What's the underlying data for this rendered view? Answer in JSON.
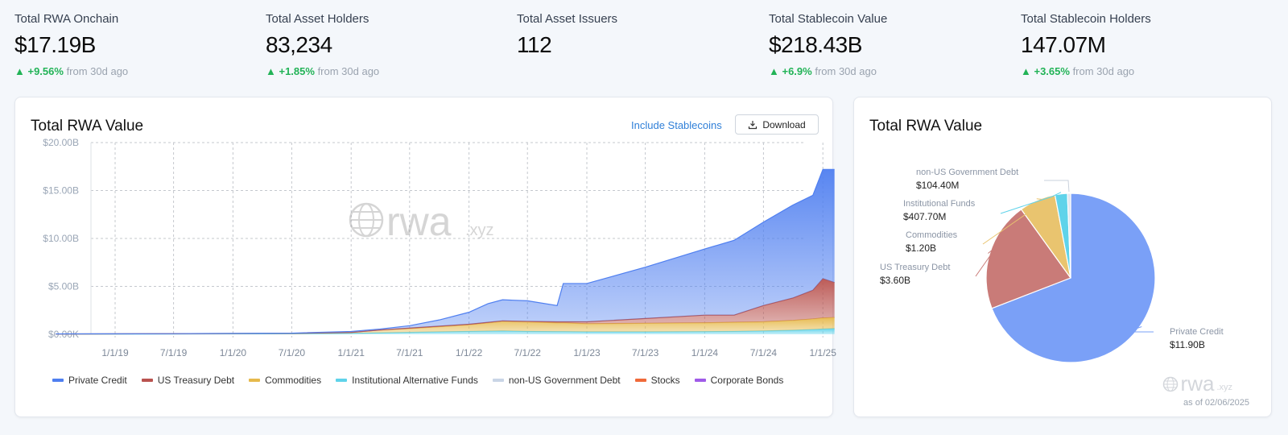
{
  "stats": [
    {
      "label": "Total RWA Onchain",
      "value": "$17.19B",
      "change": "+9.56%",
      "suffix": "from 30d ago"
    },
    {
      "label": "Total Asset Holders",
      "value": "83,234",
      "change": "+1.85%",
      "suffix": "from 30d ago"
    },
    {
      "label": "Total Asset Issuers",
      "value": "112"
    },
    {
      "label": "Total Stablecoin Value",
      "value": "$218.43B",
      "change": "+6.9%",
      "suffix": "from 30d ago"
    },
    {
      "label": "Total Stablecoin Holders",
      "value": "147.07M",
      "change": "+3.65%",
      "suffix": "from 30d ago"
    }
  ],
  "area_card": {
    "title": "Total RWA Value",
    "include_stablecoins": "Include Stablecoins",
    "download": "Download",
    "watermark": "rwa.xyz"
  },
  "pie_card": {
    "title": "Total RWA Value",
    "watermark": "rwa.xyz",
    "as_of": "as of 02/06/2025"
  },
  "chart_data": [
    {
      "type": "area",
      "stacked": true,
      "title": "Total RWA Value",
      "ylim": [
        0,
        20
      ],
      "yunit": "$B",
      "yticks": [
        "$0.00K",
        "$5.00B",
        "$10.00B",
        "$15.00B",
        "$20.00B"
      ],
      "xticks": [
        "1/1/19",
        "7/1/19",
        "1/1/20",
        "7/1/20",
        "1/1/21",
        "7/1/21",
        "1/1/22",
        "7/1/22",
        "1/1/23",
        "7/1/23",
        "1/1/24",
        "7/1/24",
        "1/1/25"
      ],
      "grid": true,
      "legend_placement": "bottom",
      "x": [
        "2018-07-01",
        "2019-07-01",
        "2020-07-01",
        "2021-01-01",
        "2021-04-01",
        "2021-07-01",
        "2021-10-01",
        "2022-01-01",
        "2022-03-01",
        "2022-04-15",
        "2022-07-01",
        "2022-10-01",
        "2022-10-20",
        "2023-01-01",
        "2023-07-01",
        "2024-01-01",
        "2024-04-01",
        "2024-07-01",
        "2024-10-01",
        "2024-12-01",
        "2025-01-01",
        "2025-02-06"
      ],
      "series": [
        {
          "name": "Institutional Alternative Funds",
          "color": "#5fd3ea",
          "values": [
            0.02,
            0.03,
            0.05,
            0.1,
            0.15,
            0.2,
            0.25,
            0.3,
            0.33,
            0.35,
            0.3,
            0.28,
            0.28,
            0.25,
            0.25,
            0.28,
            0.3,
            0.35,
            0.42,
            0.5,
            0.55,
            0.6
          ]
        },
        {
          "name": "Commodities",
          "color": "#e6b94c",
          "values": [
            0.01,
            0.03,
            0.05,
            0.1,
            0.3,
            0.4,
            0.55,
            0.7,
            0.87,
            1.0,
            1.0,
            0.92,
            0.92,
            0.85,
            0.9,
            0.92,
            0.95,
            0.95,
            1.03,
            1.1,
            1.15,
            1.15
          ]
        },
        {
          "name": "US Treasury Debt",
          "color": "#b9534f",
          "values": [
            0,
            0,
            0,
            0,
            0,
            0.05,
            0.05,
            0.05,
            0.05,
            0.05,
            0.05,
            0.1,
            0.1,
            0.2,
            0.5,
            0.8,
            0.75,
            1.7,
            2.35,
            3.0,
            4.1,
            3.65
          ]
        },
        {
          "name": "Private Credit",
          "color": "#4f7ff0",
          "values": [
            0.01,
            0.01,
            0.02,
            0.1,
            0.1,
            0.25,
            0.65,
            1.25,
            1.95,
            2.2,
            2.15,
            1.7,
            4.0,
            4.0,
            5.35,
            6.9,
            7.8,
            8.7,
            9.7,
            9.9,
            11.4,
            11.8
          ]
        }
      ],
      "legend": [
        {
          "name": "Private Credit",
          "color": "#4f7ff0"
        },
        {
          "name": "US Treasury Debt",
          "color": "#b9534f"
        },
        {
          "name": "Commodities",
          "color": "#e6b94c"
        },
        {
          "name": "Institutional Alternative Funds",
          "color": "#5fd3ea"
        },
        {
          "name": "non-US Government Debt",
          "color": "#c9d5e6"
        },
        {
          "name": "Stocks",
          "color": "#f06a3a"
        },
        {
          "name": "Corporate Bonds",
          "color": "#a05be8"
        }
      ]
    },
    {
      "type": "pie",
      "title": "Total RWA Value",
      "slices": [
        {
          "name": "Private Credit",
          "label": "$11.90B",
          "value": 11.9,
          "color": "#7aa0f7"
        },
        {
          "name": "US Treasury Debt",
          "label": "$3.60B",
          "value": 3.6,
          "color": "#c97b78"
        },
        {
          "name": "Commodities",
          "label": "$1.20B",
          "value": 1.2,
          "color": "#e9c46f"
        },
        {
          "name": "Institutional Funds",
          "label": "$407.70M",
          "value": 0.4077,
          "color": "#5fd3ea"
        },
        {
          "name": "non-US Government Debt",
          "label": "$104.40M",
          "value": 0.1044,
          "color": "#dfe5ee"
        }
      ]
    }
  ]
}
